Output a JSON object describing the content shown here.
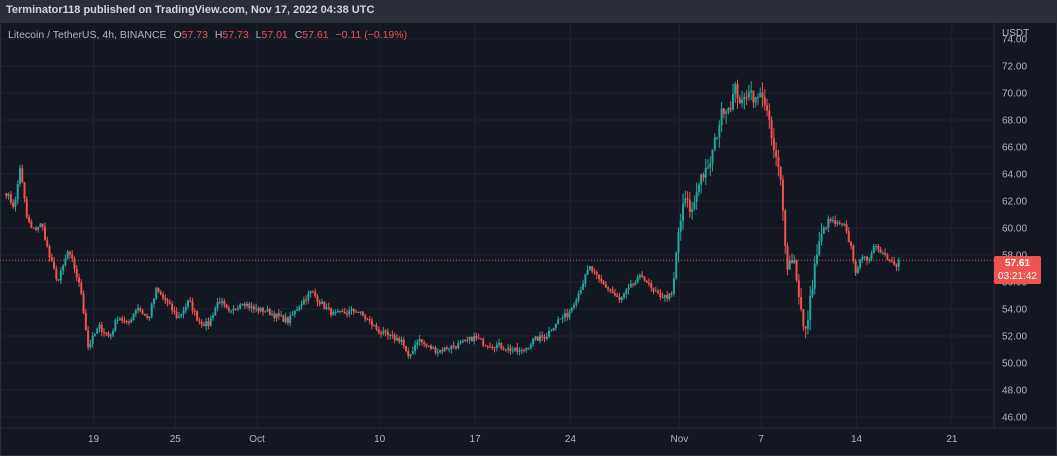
{
  "header": {
    "publisher_text": "Terminator118 published on TradingView.com, Nov 17, 2022 04:38 UTC"
  },
  "legend": {
    "symbol": "Litecoin / TetherUS, 4h, BINANCE",
    "o_label": "O",
    "o_value": "57.73",
    "h_label": "H",
    "h_value": "57.73",
    "l_label": "L",
    "l_value": "57.01",
    "c_label": "C",
    "c_value": "57.61",
    "change": "−0.11 (−0.19%)"
  },
  "price_axis": {
    "currency": "USDT",
    "last_price": "57.61",
    "countdown": "03:21:42"
  },
  "colors": {
    "up": "#26a69a",
    "down": "#ef5350",
    "background": "#131722",
    "grid": "#1f2330"
  },
  "chart_data": {
    "type": "candlestick",
    "symbol": "Litecoin / TetherUS",
    "interval": "4h",
    "exchange": "BINANCE",
    "y_ticks": [
      46,
      48,
      50,
      52,
      54,
      56,
      58,
      60,
      62,
      64,
      66,
      68,
      70,
      72,
      74
    ],
    "ylim": [
      45,
      75
    ],
    "x_ticks": [
      {
        "label": "19",
        "day": 19
      },
      {
        "label": "25",
        "day": 25
      },
      {
        "label": "Oct",
        "day": 31
      },
      {
        "label": "10",
        "day": 40
      },
      {
        "label": "17",
        "day": 47
      },
      {
        "label": "24",
        "day": 54
      },
      {
        "label": "Nov",
        "day": 62
      },
      {
        "label": "7",
        "day": 68
      },
      {
        "label": "14",
        "day": 75
      },
      {
        "label": "21",
        "day": 82
      }
    ],
    "x_range_days": [
      12.5,
      87
    ],
    "last_price": 57.61,
    "anchors": [
      [
        12.6,
        62.6
      ],
      [
        13.2,
        61.5
      ],
      [
        13.6,
        64.5
      ],
      [
        14.1,
        60.8
      ],
      [
        14.5,
        59.8
      ],
      [
        15.2,
        60.3
      ],
      [
        15.8,
        57.7
      ],
      [
        16.4,
        56.0
      ],
      [
        17.1,
        58.2
      ],
      [
        17.5,
        57.4
      ],
      [
        18.1,
        55.2
      ],
      [
        18.6,
        51.2
      ],
      [
        19.4,
        52.7
      ],
      [
        20.2,
        51.9
      ],
      [
        20.8,
        53.5
      ],
      [
        21.5,
        52.8
      ],
      [
        22.2,
        54.2
      ],
      [
        23.0,
        53.2
      ],
      [
        23.6,
        55.4
      ],
      [
        24.3,
        54.6
      ],
      [
        25.2,
        53.3
      ],
      [
        26.0,
        54.6
      ],
      [
        26.7,
        53.1
      ],
      [
        27.4,
        52.8
      ],
      [
        28.2,
        54.7
      ],
      [
        29.0,
        53.6
      ],
      [
        29.9,
        54.6
      ],
      [
        30.7,
        54.0
      ],
      [
        31.6,
        53.9
      ],
      [
        32.4,
        53.5
      ],
      [
        33.3,
        53.1
      ],
      [
        34.1,
        54.3
      ],
      [
        35.0,
        55.3
      ],
      [
        35.8,
        54.3
      ],
      [
        36.6,
        53.6
      ],
      [
        37.5,
        53.7
      ],
      [
        38.3,
        53.9
      ],
      [
        39.2,
        53.1
      ],
      [
        40.0,
        52.3
      ],
      [
        40.8,
        51.9
      ],
      [
        41.6,
        51.7
      ],
      [
        42.1,
        50.3
      ],
      [
        42.8,
        51.8
      ],
      [
        43.5,
        51.2
      ],
      [
        44.3,
        50.9
      ],
      [
        45.2,
        51.2
      ],
      [
        46.0,
        51.4
      ],
      [
        46.9,
        51.9
      ],
      [
        47.8,
        51.4
      ],
      [
        48.7,
        51.3
      ],
      [
        49.6,
        51.0
      ],
      [
        50.4,
        50.8
      ],
      [
        51.3,
        51.7
      ],
      [
        52.2,
        52.0
      ],
      [
        53.0,
        53.1
      ],
      [
        53.8,
        53.6
      ],
      [
        54.6,
        55.2
      ],
      [
        55.4,
        57.1
      ],
      [
        56.1,
        56.1
      ],
      [
        56.9,
        55.4
      ],
      [
        57.6,
        54.6
      ],
      [
        58.4,
        55.6
      ],
      [
        59.3,
        56.5
      ],
      [
        60.1,
        55.2
      ],
      [
        60.9,
        54.9
      ],
      [
        61.5,
        55.0
      ],
      [
        61.9,
        59.5
      ],
      [
        62.4,
        62.2
      ],
      [
        62.9,
        61.1
      ],
      [
        63.5,
        63.8
      ],
      [
        64.1,
        64.2
      ],
      [
        64.7,
        66.8
      ],
      [
        65.2,
        68.9
      ],
      [
        65.7,
        69.0
      ],
      [
        66.1,
        70.3
      ],
      [
        66.6,
        69.1
      ],
      [
        67.1,
        70.4
      ],
      [
        67.6,
        69.4
      ],
      [
        68.1,
        70.0
      ],
      [
        68.5,
        68.2
      ],
      [
        68.9,
        65.8
      ],
      [
        69.4,
        63.8
      ],
      [
        69.9,
        57.3
      ],
      [
        70.4,
        57.8
      ],
      [
        70.8,
        54.9
      ],
      [
        71.2,
        51.8
      ],
      [
        71.6,
        54.6
      ],
      [
        72.0,
        57.7
      ],
      [
        72.5,
        59.7
      ],
      [
        73.0,
        60.6
      ],
      [
        73.5,
        60.3
      ],
      [
        74.1,
        60.1
      ],
      [
        74.6,
        58.6
      ],
      [
        75.0,
        56.5
      ],
      [
        75.5,
        58.3
      ],
      [
        75.9,
        57.4
      ],
      [
        76.4,
        58.8
      ],
      [
        76.9,
        58.2
      ],
      [
        77.4,
        57.7
      ],
      [
        77.9,
        57.3
      ],
      [
        78.2,
        57.6
      ]
    ]
  }
}
